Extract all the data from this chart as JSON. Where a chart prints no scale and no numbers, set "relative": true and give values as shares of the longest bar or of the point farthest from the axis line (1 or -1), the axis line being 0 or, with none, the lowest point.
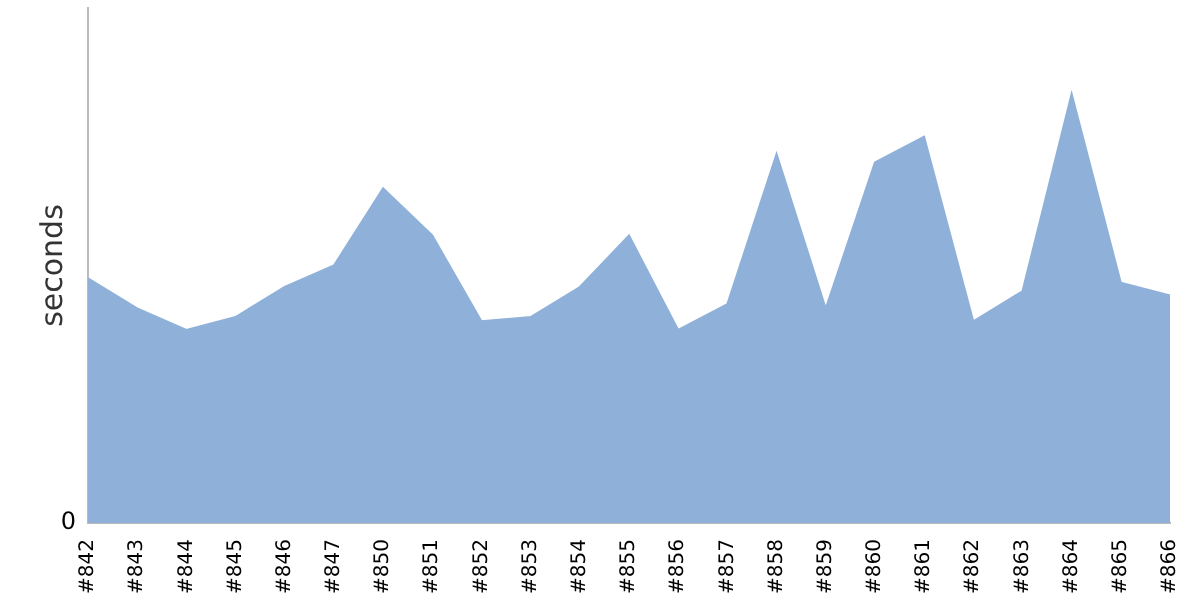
{
  "chart_data": {
    "type": "area",
    "ylabel": "seconds",
    "relative": true,
    "annotations": [
      "0"
    ],
    "grid": false,
    "legend": false,
    "categories": [
      "#842",
      "#843",
      "#844",
      "#845",
      "#846",
      "#847",
      "#850",
      "#851",
      "#852",
      "#853",
      "#854",
      "#855",
      "#856",
      "#857",
      "#858",
      "#859",
      "#860",
      "#861",
      "#862",
      "#863",
      "#864",
      "#865",
      "#866"
    ],
    "series": [
      {
        "color": "#8fb1d9",
        "values": [
          0.57,
          0.5,
          0.45,
          0.48,
          0.55,
          0.6,
          0.78,
          0.67,
          0.47,
          0.48,
          0.55,
          0.67,
          0.45,
          0.51,
          0.86,
          0.5,
          0.84,
          0.9,
          0.47,
          0.54,
          1,
          0.56,
          0.53
        ]
      }
    ]
  }
}
